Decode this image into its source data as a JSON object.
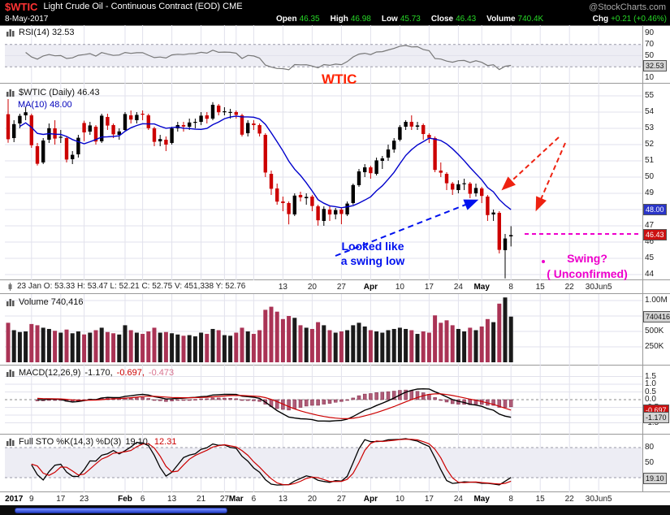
{
  "header": {
    "symbol": "$WTIC",
    "title": "Light Crude Oil - Continuous Contract (EOD) CME",
    "watermark": "@StockCharts.com",
    "date": "8-May-2017",
    "quote": [
      {
        "label": "Open",
        "value": "46.35"
      },
      {
        "label": "High",
        "value": "46.98"
      },
      {
        "label": "Low",
        "value": "45.73"
      },
      {
        "label": "Close",
        "value": "46.43"
      },
      {
        "label": "Volume",
        "value": "740.4K"
      },
      {
        "label": "Chg",
        "value": "+0.21 (+0.46%)"
      }
    ]
  },
  "panels": {
    "rsi": {
      "legend": "RSI(14) 32.53",
      "ticks": [
        {
          "t": "90",
          "v": 90
        },
        {
          "t": "70",
          "v": 70
        },
        {
          "t": "50",
          "v": 50
        },
        {
          "t": "30",
          "v": 30
        },
        {
          "t": "10",
          "v": 10
        }
      ],
      "boxes": [
        {
          "t": "32.53",
          "v": 32.53,
          "bg": "#d4d4d4",
          "fg": "#111111"
        }
      ]
    },
    "price": {
      "legend_symbol": "$WTIC (Daily) 46.43",
      "legend_ma": "MA(10) 48.00",
      "ticks": [
        {
          "t": "55",
          "v": 55
        },
        {
          "t": "54",
          "v": 54
        },
        {
          "t": "53",
          "v": 53
        },
        {
          "t": "52",
          "v": 52
        },
        {
          "t": "51",
          "v": 51
        },
        {
          "t": "50",
          "v": 50
        },
        {
          "t": "49",
          "v": 49
        },
        {
          "t": "47",
          "v": 47
        },
        {
          "t": "46",
          "v": 46
        },
        {
          "t": "45",
          "v": 45
        },
        {
          "t": "44",
          "v": 44
        }
      ],
      "boxes": [
        {
          "t": "48.00",
          "v": 48.0,
          "bg": "#2a35c8",
          "fg": "#ffffff"
        },
        {
          "t": "46.43",
          "v": 46.43,
          "bg": "#cc1111",
          "fg": "#ffffff"
        }
      ]
    },
    "volume": {
      "legend": "Volume 740,416",
      "ticks": [
        {
          "t": "1.00M",
          "v": 1000
        },
        {
          "t": "500K",
          "v": 500
        },
        {
          "t": "250K",
          "v": 250
        }
      ],
      "boxes": [
        {
          "t": "740416",
          "v": 740,
          "bg": "#d4d4d4",
          "fg": "#111111"
        }
      ]
    },
    "macd": {
      "legend_name": "MACD(12,26,9)",
      "legend_v1": "-1.170,",
      "legend_v2": "-0.697,",
      "legend_v3": "-0.473",
      "ticks": [
        {
          "t": "1.5",
          "v": 1.5
        },
        {
          "t": "1.0",
          "v": 1.0
        },
        {
          "t": "0.5",
          "v": 0.5
        },
        {
          "t": "0.0",
          "v": 0.0
        },
        {
          "t": "-0.5",
          "v": -0.5
        },
        {
          "t": "-1.5",
          "v": -1.5
        }
      ],
      "boxes": [
        {
          "t": "-0.697",
          "v": -0.697,
          "bg": "#cc1111",
          "fg": "#ffffff"
        },
        {
          "t": "-1.170",
          "v": -1.17,
          "bg": "#d4d4d4",
          "fg": "#111111"
        }
      ]
    },
    "sto": {
      "legend_name": "Full STO %K(14,3) %D(3)",
      "legend_v1": "19.10,",
      "legend_v2": "12.31",
      "ticks": [
        {
          "t": "80",
          "v": 80
        },
        {
          "t": "50",
          "v": 50
        },
        {
          "t": "20",
          "v": 20
        }
      ],
      "boxes": [
        {
          "t": "19.10",
          "v": 19.1,
          "bg": "#d4d4d4",
          "fg": "#111111"
        }
      ]
    }
  },
  "axis": {
    "mid_info": "23 Jan  O: 53.33  H: 53.47  L: 52.21  C: 52.75  V: 451,338  Y: 52.76",
    "mid_labels": [
      {
        "t": "13",
        "i": 47
      },
      {
        "t": "20",
        "i": 52
      },
      {
        "t": "27",
        "i": 57
      },
      {
        "t": "Apr",
        "i": 62,
        "b": 1
      },
      {
        "t": "10",
        "i": 67
      },
      {
        "t": "17",
        "i": 72
      },
      {
        "t": "24",
        "i": 77
      },
      {
        "t": "May",
        "i": 81,
        "b": 1
      },
      {
        "t": "8",
        "i": 86
      },
      {
        "t": "15",
        "i": 91
      },
      {
        "t": "22",
        "i": 96
      },
      {
        "t": "30Jun5",
        "i": 101
      }
    ],
    "bottom_labels": [
      {
        "t": "2017",
        "i": 1,
        "b": 1
      },
      {
        "t": "9",
        "i": 4
      },
      {
        "t": "17",
        "i": 9
      },
      {
        "t": "23",
        "i": 13
      },
      {
        "t": "Feb",
        "i": 20,
        "b": 1
      },
      {
        "t": "6",
        "i": 23
      },
      {
        "t": "13",
        "i": 28
      },
      {
        "t": "21",
        "i": 33
      },
      {
        "t": "27",
        "i": 37
      },
      {
        "t": "Mar",
        "i": 39,
        "b": 1
      },
      {
        "t": "6",
        "i": 42
      },
      {
        "t": "13",
        "i": 47
      },
      {
        "t": "20",
        "i": 52
      },
      {
        "t": "27",
        "i": 57
      },
      {
        "t": "Apr",
        "i": 62,
        "b": 1
      },
      {
        "t": "10",
        "i": 67
      },
      {
        "t": "17",
        "i": 72
      },
      {
        "t": "24",
        "i": 77
      },
      {
        "t": "May",
        "i": 81,
        "b": 1
      },
      {
        "t": "8",
        "i": 86
      },
      {
        "t": "15",
        "i": 91
      },
      {
        "t": "22",
        "i": 96
      },
      {
        "t": "30Jun5",
        "i": 101
      }
    ]
  },
  "annotations": {
    "wtic": "WTIC",
    "swing_low": [
      "Looked like",
      "a swing low"
    ],
    "swing": [
      "Swing?",
      "( Unconfirmed)"
    ],
    "colors": {
      "wtic": "#ff2200",
      "swing_low": "#0011ee",
      "red_arrows": "#ee2211",
      "swing": "#ee00cc"
    }
  },
  "chart_data": {
    "type": "candlestick",
    "title": "$WTIC Light Crude Oil - Continuous Contract (EOD) CME",
    "timeframe": "Daily",
    "date_range": "Jan 2017 - 8 May 2017",
    "overlays": [
      "MA(10)"
    ],
    "indicators": [
      "RSI(14)",
      "Volume",
      "MACD(12,26,9)",
      "Full STO %K(14,3) %D(3)"
    ],
    "indicator_values": {
      "rsi_14": 32.53,
      "ma_10": 48.0,
      "close": 46.43,
      "volume": 740416,
      "macd": [
        -1.17,
        -0.697,
        -0.473
      ],
      "full_sto": [
        19.1,
        12.31
      ]
    },
    "price_axis_range": [
      44,
      55
    ],
    "colors": {
      "up": "#000000",
      "down": "#cc0000",
      "ma": "#0000cc",
      "volume_up": "#1a1a1a",
      "volume_down": "#aa3355",
      "macd_line": "#000000",
      "macd_signal": "#cc0000",
      "macd_hist": "#b05c78",
      "rsi": "#777777"
    },
    "candles": [
      [
        53.87,
        54.8,
        52.11,
        52.33,
        640
      ],
      [
        52.4,
        53.5,
        52.15,
        53.26,
        520
      ],
      [
        53.3,
        53.9,
        53.0,
        53.77,
        490
      ],
      [
        53.8,
        54.32,
        53.5,
        53.99,
        500
      ],
      [
        53.8,
        53.9,
        51.8,
        51.96,
        620
      ],
      [
        51.9,
        52.1,
        50.71,
        50.82,
        600
      ],
      [
        50.9,
        52.4,
        50.8,
        52.25,
        560
      ],
      [
        52.3,
        53.3,
        52.1,
        53.01,
        540
      ],
      [
        53.0,
        53.5,
        52.0,
        52.37,
        510
      ],
      [
        52.45,
        52.9,
        52.1,
        52.48,
        480
      ],
      [
        52.4,
        52.5,
        50.9,
        51.08,
        530
      ],
      [
        51.1,
        51.6,
        50.8,
        51.37,
        470
      ],
      [
        51.4,
        52.6,
        51.2,
        52.42,
        500
      ],
      [
        53.33,
        53.47,
        52.21,
        52.75,
        451
      ],
      [
        52.8,
        53.4,
        52.6,
        53.18,
        480
      ],
      [
        53.1,
        53.2,
        52.0,
        52.19,
        520
      ],
      [
        52.2,
        53.9,
        52.1,
        53.78,
        560
      ],
      [
        53.7,
        53.9,
        52.9,
        53.17,
        490
      ],
      [
        53.2,
        53.3,
        52.4,
        52.63,
        470
      ],
      [
        52.6,
        53.0,
        52.3,
        52.81,
        450
      ],
      [
        52.9,
        54.0,
        52.8,
        53.88,
        600
      ],
      [
        53.8,
        54.1,
        53.3,
        53.54,
        520
      ],
      [
        53.5,
        54.0,
        53.3,
        53.83,
        480
      ],
      [
        53.9,
        54.1,
        53.5,
        53.86,
        460
      ],
      [
        53.8,
        53.9,
        52.9,
        53.01,
        500
      ],
      [
        53.0,
        53.1,
        51.9,
        52.17,
        560
      ],
      [
        52.2,
        52.6,
        51.9,
        52.34,
        480
      ],
      [
        52.3,
        52.5,
        51.6,
        52.0,
        490
      ],
      [
        52.1,
        53.1,
        52.0,
        53.0,
        470
      ],
      [
        53.0,
        53.4,
        52.8,
        53.2,
        450
      ],
      [
        53.2,
        53.4,
        52.8,
        53.11,
        430
      ],
      [
        53.1,
        53.6,
        52.9,
        53.36,
        440
      ],
      [
        53.4,
        53.6,
        53.0,
        53.4,
        420
      ],
      [
        53.4,
        54.0,
        53.2,
        53.78,
        480
      ],
      [
        53.8,
        54.0,
        53.3,
        53.59,
        460
      ],
      [
        53.6,
        54.61,
        53.5,
        54.45,
        540
      ],
      [
        54.4,
        54.5,
        53.8,
        53.99,
        520
      ],
      [
        54.0,
        54.3,
        53.8,
        54.05,
        440
      ],
      [
        54.0,
        54.2,
        53.6,
        54.01,
        430
      ],
      [
        54.0,
        54.1,
        53.6,
        53.83,
        480
      ],
      [
        53.8,
        53.9,
        52.5,
        52.61,
        560
      ],
      [
        52.7,
        53.5,
        52.5,
        53.33,
        500
      ],
      [
        53.3,
        53.5,
        52.9,
        53.2,
        460
      ],
      [
        53.2,
        53.3,
        52.5,
        52.68,
        520
      ],
      [
        52.6,
        52.7,
        50.0,
        50.28,
        850
      ],
      [
        50.2,
        50.4,
        48.9,
        49.28,
        900
      ],
      [
        49.3,
        49.6,
        48.3,
        48.49,
        820
      ],
      [
        48.5,
        48.8,
        47.9,
        48.4,
        700
      ],
      [
        48.4,
        48.5,
        47.09,
        47.72,
        750
      ],
      [
        47.7,
        49.0,
        47.6,
        48.86,
        720
      ],
      [
        48.9,
        49.1,
        48.5,
        48.75,
        600
      ],
      [
        48.7,
        49.0,
        48.3,
        48.78,
        560
      ],
      [
        48.8,
        48.9,
        47.9,
        48.22,
        540
      ],
      [
        48.2,
        48.3,
        47.01,
        47.34,
        650
      ],
      [
        47.3,
        48.2,
        47.0,
        48.04,
        600
      ],
      [
        48.0,
        48.2,
        47.3,
        47.7,
        520
      ],
      [
        47.7,
        48.1,
        47.4,
        47.97,
        480
      ],
      [
        48.0,
        48.1,
        47.1,
        47.73,
        500
      ],
      [
        47.7,
        48.5,
        47.6,
        48.37,
        520
      ],
      [
        48.4,
        49.6,
        48.3,
        49.51,
        600
      ],
      [
        49.5,
        50.5,
        49.4,
        50.35,
        640
      ],
      [
        50.3,
        50.8,
        50.0,
        50.6,
        580
      ],
      [
        50.6,
        50.7,
        49.9,
        50.24,
        520
      ],
      [
        50.2,
        51.2,
        50.1,
        51.03,
        500
      ],
      [
        51.0,
        51.3,
        50.5,
        51.15,
        480
      ],
      [
        51.2,
        52.0,
        51.0,
        51.7,
        520
      ],
      [
        51.7,
        52.4,
        51.5,
        52.24,
        540
      ],
      [
        52.3,
        53.2,
        52.2,
        53.08,
        560
      ],
      [
        53.1,
        53.5,
        52.9,
        53.4,
        540
      ],
      [
        53.4,
        53.8,
        52.9,
        53.11,
        520
      ],
      [
        53.1,
        53.4,
        52.9,
        53.18,
        460
      ],
      [
        53.2,
        53.3,
        52.3,
        52.65,
        500
      ],
      [
        52.6,
        52.7,
        52.1,
        52.41,
        480
      ],
      [
        52.4,
        52.5,
        50.3,
        50.44,
        760
      ],
      [
        50.4,
        50.9,
        50.0,
        50.27,
        640
      ],
      [
        50.2,
        50.3,
        49.2,
        49.62,
        680
      ],
      [
        49.6,
        49.7,
        48.9,
        49.23,
        600
      ],
      [
        49.2,
        49.8,
        49.0,
        49.56,
        540
      ],
      [
        49.6,
        49.9,
        49.2,
        49.62,
        500
      ],
      [
        49.6,
        49.7,
        48.7,
        48.97,
        560
      ],
      [
        49.0,
        49.6,
        48.8,
        49.33,
        520
      ],
      [
        49.3,
        49.4,
        48.4,
        48.84,
        580
      ],
      [
        48.8,
        48.9,
        47.3,
        47.66,
        700
      ],
      [
        47.7,
        48.0,
        47.3,
        47.82,
        650
      ],
      [
        47.8,
        47.9,
        45.3,
        45.52,
        950
      ],
      [
        45.5,
        46.5,
        43.76,
        46.22,
        1050
      ],
      [
        46.35,
        46.98,
        45.73,
        46.43,
        740
      ]
    ]
  }
}
